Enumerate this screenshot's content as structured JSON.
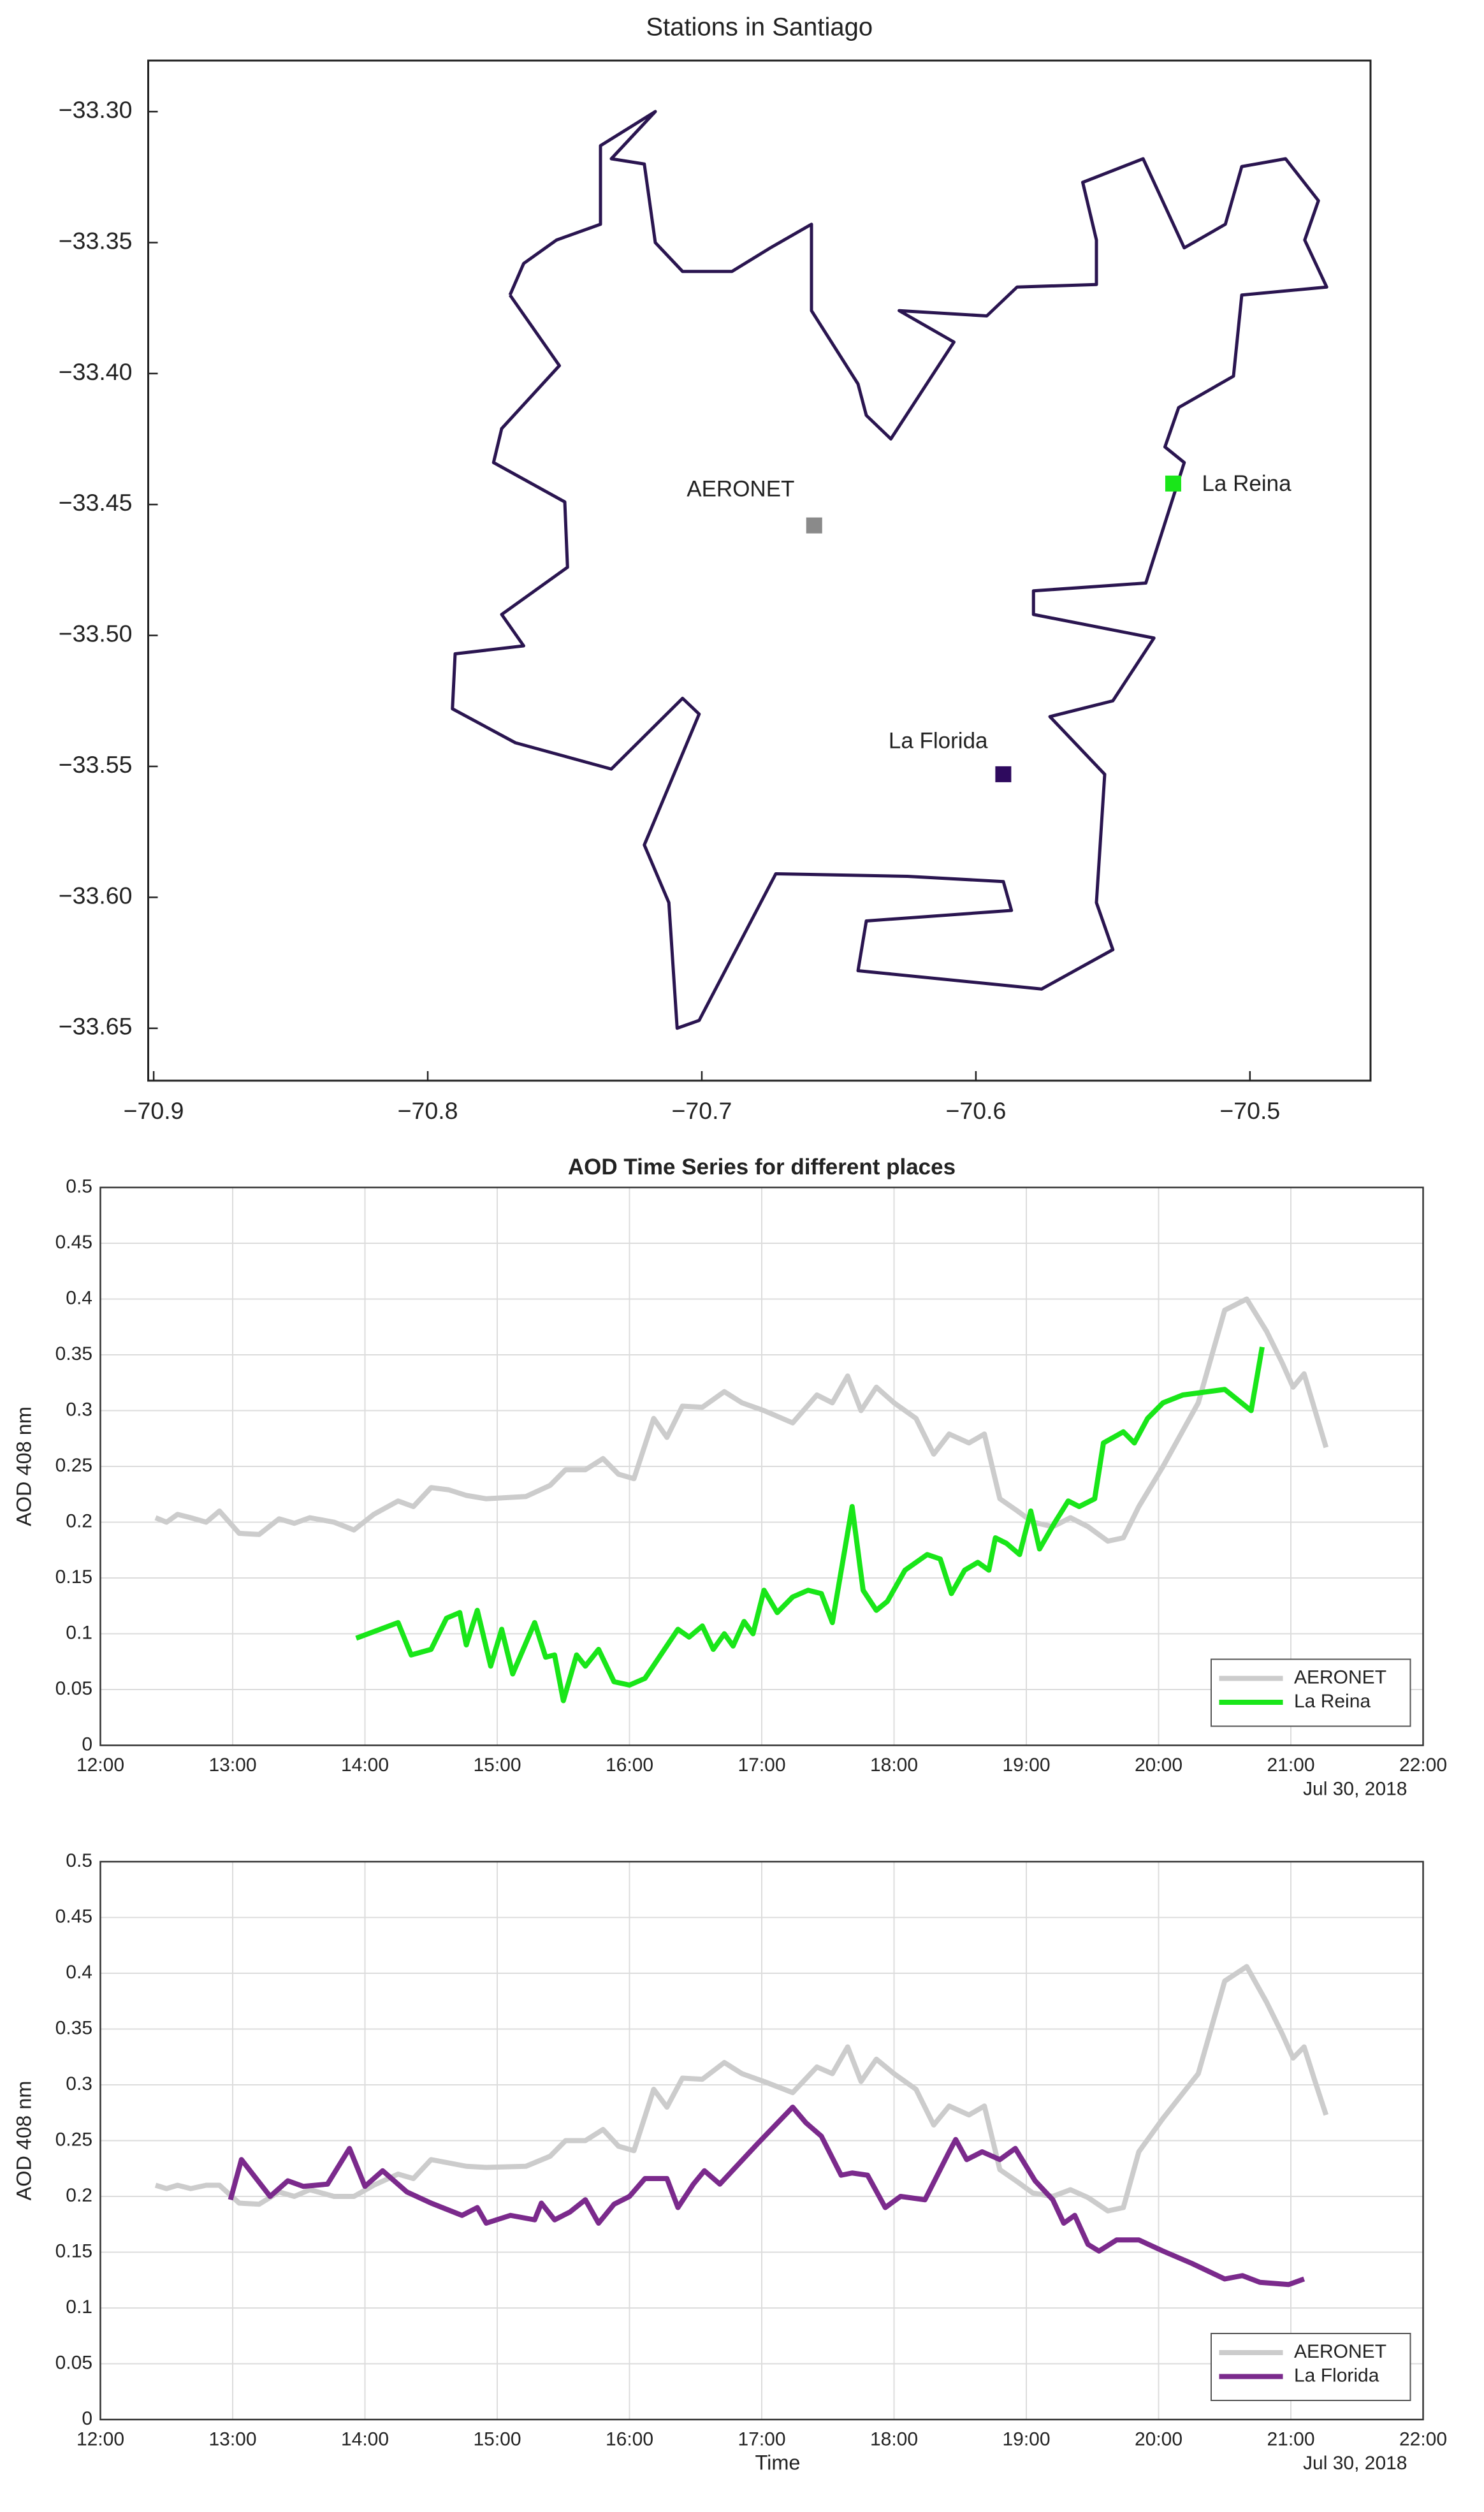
{
  "chart_data": [
    {
      "type": "map",
      "title": "Stations in Santiago",
      "xlim": [
        -70.902,
        -70.456
      ],
      "ylim": [
        -33.67,
        -33.2805
      ],
      "xticks": [
        {
          "value": -70.9,
          "label": "−70.9"
        },
        {
          "value": -70.8,
          "label": "−70.8"
        },
        {
          "value": -70.7,
          "label": "−70.7"
        },
        {
          "value": -70.6,
          "label": "−70.6"
        },
        {
          "value": -70.5,
          "label": "−70.5"
        }
      ],
      "yticks": [
        {
          "value": -33.3,
          "label": "−33.30"
        },
        {
          "value": -33.35,
          "label": "−33.35"
        },
        {
          "value": -33.4,
          "label": "−33.40"
        },
        {
          "value": -33.45,
          "label": "−33.45"
        },
        {
          "value": -33.5,
          "label": "−33.50"
        },
        {
          "value": -33.55,
          "label": "−33.55"
        },
        {
          "value": -33.6,
          "label": "−33.60"
        },
        {
          "value": -33.65,
          "label": "−33.65"
        }
      ],
      "boundary": {
        "color": "#2a1550",
        "x": [
          -70.77,
          -70.752,
          -70.773,
          -70.776,
          -70.75,
          -70.749,
          -70.773,
          -70.765,
          -70.79,
          -70.791,
          -70.768,
          -70.733,
          -70.707,
          -70.701,
          -70.721,
          -70.712,
          -70.709,
          -70.701,
          -70.683,
          -70.673,
          -70.625,
          -70.59,
          -70.587,
          -70.64,
          -70.643,
          -70.576,
          -70.55,
          -70.556,
          -70.553,
          -70.573,
          -70.55,
          -70.535,
          -70.579,
          -70.579,
          -70.538,
          -70.524,
          -70.531,
          -70.526,
          -70.506,
          -70.503,
          -70.472,
          -70.48,
          -70.475,
          -70.487,
          -70.503,
          -70.509,
          -70.524,
          -70.539,
          -70.561,
          -70.556,
          -70.556,
          -70.585,
          -70.596,
          -70.628,
          -70.608,
          -70.631,
          -70.64,
          -70.643,
          -70.66,
          -70.66,
          -70.675,
          -70.689,
          -70.707,
          -70.717,
          -70.721,
          -70.733,
          -70.717,
          -70.737,
          -70.737,
          -70.753,
          -70.765,
          -70.77
        ],
        "y": [
          -33.37,
          -33.397,
          -33.421,
          -33.434,
          -33.449,
          -33.474,
          -33.492,
          -33.504,
          -33.507,
          -33.528,
          -33.541,
          -33.551,
          -33.524,
          -33.53,
          -33.58,
          -33.602,
          -33.65,
          -33.647,
          -33.611,
          -33.591,
          -33.592,
          -33.594,
          -33.605,
          -33.609,
          -33.628,
          -33.635,
          -33.62,
          -33.602,
          -33.553,
          -33.531,
          -33.525,
          -33.501,
          -33.492,
          -33.483,
          -33.48,
          -33.434,
          -33.428,
          -33.413,
          -33.401,
          -33.37,
          -33.367,
          -33.349,
          -33.334,
          -33.318,
          -33.321,
          -33.343,
          -33.352,
          -33.318,
          -33.327,
          -33.349,
          -33.366,
          -33.367,
          -33.378,
          -33.376,
          -33.388,
          -33.425,
          -33.416,
          -33.404,
          -33.376,
          -33.343,
          -33.352,
          -33.361,
          -33.361,
          -33.35,
          -33.32,
          -33.318,
          -33.3,
          -33.313,
          -33.343,
          -33.349,
          -33.358,
          -33.37
        ]
      },
      "stations": [
        {
          "name": "AERONET",
          "color": "#8a8a8a",
          "x": -70.659,
          "y": -33.458
        },
        {
          "name": "La Reina",
          "color": "#19e619",
          "x": -70.528,
          "y": -33.442
        },
        {
          "name": "La Florida",
          "color": "#2e0a5e",
          "x": -70.59,
          "y": -33.553
        }
      ]
    },
    {
      "type": "line",
      "title": "AOD Time Series for different places",
      "ylabel": "AOD 408 nm",
      "date_label": "Jul 30, 2018",
      "xlim": [
        "12:00",
        "22:00"
      ],
      "xticks": [
        "12:00",
        "13:00",
        "14:00",
        "15:00",
        "16:00",
        "17:00",
        "18:00",
        "19:00",
        "20:00",
        "21:00",
        "22:00"
      ],
      "ylim": [
        0,
        0.5
      ],
      "yticks": [
        0,
        0.05,
        0.1,
        0.15,
        0.2,
        0.25,
        0.3,
        0.35,
        0.4,
        0.45,
        0.5
      ],
      "grid": true,
      "legend": "lower right",
      "series": [
        {
          "name": "AERONET",
          "color": "#cccccc",
          "x": [
            "12:25",
            "12:30",
            "12:35",
            "12:41",
            "12:48",
            "12:54",
            "13:03",
            "13:12",
            "13:21",
            "13:28",
            "13:35",
            "13:46",
            "13:55",
            "14:04",
            "14:15",
            "14:22",
            "14:30",
            "14:38",
            "14:46",
            "14:55",
            "15:13",
            "15:24",
            "15:31",
            "15:40",
            "15:48",
            "15:55",
            "16:02",
            "16:11",
            "16:17",
            "16:24",
            "16:33",
            "16:43",
            "16:51",
            "17:01",
            "17:14",
            "17:25",
            "17:32",
            "17:39",
            "17:45",
            "17:52",
            "18:00",
            "18:10",
            "18:18",
            "18:25",
            "18:34",
            "18:41",
            "18:48",
            "18:56",
            "19:03",
            "19:12",
            "19:20",
            "19:28",
            "19:37",
            "19:44",
            "19:51",
            "20:02",
            "20:18",
            "20:30",
            "20:40",
            "20:49",
            "20:56",
            "21:01",
            "21:06",
            "21:11",
            "21:16"
          ],
          "values": [
            0.204,
            0.2,
            0.207,
            0.204,
            0.2,
            0.21,
            0.19,
            0.189,
            0.203,
            0.199,
            0.204,
            0.2,
            0.193,
            0.207,
            0.219,
            0.214,
            0.231,
            0.229,
            0.224,
            0.221,
            0.223,
            0.233,
            0.247,
            0.247,
            0.257,
            0.243,
            0.239,
            0.293,
            0.276,
            0.304,
            0.303,
            0.317,
            0.307,
            0.3,
            0.289,
            0.314,
            0.307,
            0.331,
            0.3,
            0.321,
            0.307,
            0.293,
            0.261,
            0.279,
            0.271,
            0.279,
            0.221,
            0.21,
            0.2,
            0.196,
            0.204,
            0.196,
            0.183,
            0.186,
            0.214,
            0.25,
            0.307,
            0.39,
            0.4,
            0.371,
            0.343,
            0.321,
            0.333,
            0.3,
            0.267
          ]
        },
        {
          "name": "La Reina",
          "color": "#19e619",
          "x": [
            "13:56",
            "14:15",
            "14:21",
            "14:30",
            "14:37",
            "14:43",
            "14:46",
            "14:51",
            "14:57",
            "15:02",
            "15:07",
            "15:17",
            "15:22",
            "15:26",
            "15:30",
            "15:36",
            "15:40",
            "15:46",
            "15:53",
            "16:00",
            "16:07",
            "16:22",
            "16:27",
            "16:33",
            "16:38",
            "16:43",
            "16:47",
            "16:52",
            "16:56",
            "17:01",
            "17:07",
            "17:14",
            "17:21",
            "17:27",
            "17:32",
            "17:41",
            "17:46",
            "17:52",
            "17:57",
            "18:05",
            "18:15",
            "18:21",
            "18:26",
            "18:32",
            "18:38",
            "18:43",
            "18:46",
            "18:51",
            "18:57",
            "19:02",
            "19:06",
            "19:13",
            "19:19",
            "19:24",
            "19:31",
            "19:35",
            "19:44",
            "19:49",
            "19:55",
            "20:02",
            "20:11",
            "20:30",
            "20:42",
            "20:47"
          ],
          "values": [
            0.096,
            0.11,
            0.081,
            0.086,
            0.114,
            0.119,
            0.09,
            0.121,
            0.071,
            0.104,
            0.064,
            0.11,
            0.079,
            0.081,
            0.04,
            0.081,
            0.071,
            0.086,
            0.057,
            0.054,
            0.06,
            0.104,
            0.097,
            0.107,
            0.086,
            0.1,
            0.089,
            0.111,
            0.1,
            0.139,
            0.119,
            0.133,
            0.139,
            0.136,
            0.11,
            0.214,
            0.139,
            0.121,
            0.129,
            0.157,
            0.171,
            0.167,
            0.136,
            0.157,
            0.164,
            0.157,
            0.186,
            0.181,
            0.171,
            0.21,
            0.176,
            0.2,
            0.219,
            0.214,
            0.221,
            0.271,
            0.281,
            0.271,
            0.293,
            0.307,
            0.314,
            0.319,
            0.3,
            0.357
          ]
        }
      ]
    },
    {
      "type": "line",
      "ylabel": "AOD 408 nm",
      "xlabel": "Time",
      "date_label": "Jul 30, 2018",
      "xlim": [
        "12:00",
        "22:00"
      ],
      "xticks": [
        "12:00",
        "13:00",
        "14:00",
        "15:00",
        "16:00",
        "17:00",
        "18:00",
        "19:00",
        "20:00",
        "21:00",
        "22:00"
      ],
      "ylim": [
        0,
        0.5
      ],
      "yticks": [
        0,
        0.05,
        0.1,
        0.15,
        0.2,
        0.25,
        0.3,
        0.35,
        0.4,
        0.45,
        0.5
      ],
      "grid": true,
      "legend": "lower right",
      "series": [
        {
          "name": "AERONET",
          "color": "#cccccc",
          "x": [
            "12:25",
            "12:30",
            "12:35",
            "12:41",
            "12:48",
            "12:54",
            "13:03",
            "13:12",
            "13:21",
            "13:28",
            "13:35",
            "13:46",
            "13:55",
            "14:04",
            "14:15",
            "14:22",
            "14:30",
            "14:38",
            "14:46",
            "14:55",
            "15:13",
            "15:24",
            "15:31",
            "15:40",
            "15:48",
            "15:55",
            "16:02",
            "16:11",
            "16:17",
            "16:24",
            "16:33",
            "16:43",
            "16:51",
            "17:01",
            "17:14",
            "17:25",
            "17:32",
            "17:39",
            "17:45",
            "17:52",
            "18:00",
            "18:10",
            "18:18",
            "18:25",
            "18:34",
            "18:41",
            "18:48",
            "18:56",
            "19:03",
            "19:12",
            "19:20",
            "19:28",
            "19:37",
            "19:44",
            "19:51",
            "20:02",
            "20:18",
            "20:30",
            "20:40",
            "20:49",
            "20:56",
            "21:01",
            "21:06",
            "21:11",
            "21:16"
          ],
          "values": [
            0.21,
            0.207,
            0.21,
            0.207,
            0.21,
            0.21,
            0.194,
            0.193,
            0.204,
            0.2,
            0.206,
            0.2,
            0.2,
            0.21,
            0.22,
            0.216,
            0.233,
            0.23,
            0.227,
            0.226,
            0.227,
            0.236,
            0.25,
            0.25,
            0.26,
            0.245,
            0.241,
            0.296,
            0.28,
            0.306,
            0.305,
            0.32,
            0.31,
            0.303,
            0.293,
            0.316,
            0.31,
            0.334,
            0.303,
            0.323,
            0.31,
            0.296,
            0.264,
            0.281,
            0.273,
            0.281,
            0.224,
            0.213,
            0.203,
            0.2,
            0.206,
            0.199,
            0.187,
            0.19,
            0.24,
            0.27,
            0.31,
            0.393,
            0.406,
            0.374,
            0.346,
            0.324,
            0.334,
            0.303,
            0.273
          ]
        },
        {
          "name": "La Florida",
          "color": "#7b2a8c",
          "x": [
            "12:59",
            "13:04",
            "13:17",
            "13:25",
            "13:32",
            "13:43",
            "13:53",
            "14:00",
            "14:08",
            "14:19",
            "14:30",
            "14:44",
            "14:51",
            "14:55",
            "15:06",
            "15:17",
            "15:20",
            "15:26",
            "15:33",
            "15:40",
            "15:46",
            "15:53",
            "16:00",
            "16:07",
            "16:17",
            "16:22",
            "16:29",
            "16:34",
            "16:41",
            "16:58",
            "17:14",
            "17:20",
            "17:27",
            "17:36",
            "17:41",
            "17:48",
            "17:56",
            "18:03",
            "18:14",
            "18:25",
            "18:28",
            "18:33",
            "18:40",
            "18:48",
            "18:55",
            "19:04",
            "19:12",
            "19:17",
            "19:22",
            "19:28",
            "19:33",
            "19:41",
            "19:51",
            "20:02",
            "20:15",
            "20:30",
            "20:38",
            "20:46",
            "20:59",
            "21:06"
          ],
          "values": [
            0.197,
            0.233,
            0.2,
            0.214,
            0.209,
            0.211,
            0.243,
            0.209,
            0.223,
            0.204,
            0.194,
            0.183,
            0.19,
            0.176,
            0.183,
            0.179,
            0.194,
            0.179,
            0.186,
            0.197,
            0.176,
            0.193,
            0.2,
            0.216,
            0.216,
            0.19,
            0.211,
            0.223,
            0.211,
            0.247,
            0.28,
            0.266,
            0.254,
            0.219,
            0.221,
            0.219,
            0.19,
            0.2,
            0.197,
            0.24,
            0.251,
            0.233,
            0.24,
            0.233,
            0.243,
            0.214,
            0.197,
            0.176,
            0.183,
            0.157,
            0.151,
            0.161,
            0.161,
            0.151,
            0.14,
            0.126,
            0.129,
            0.123,
            0.121,
            0.126
          ]
        }
      ]
    }
  ]
}
